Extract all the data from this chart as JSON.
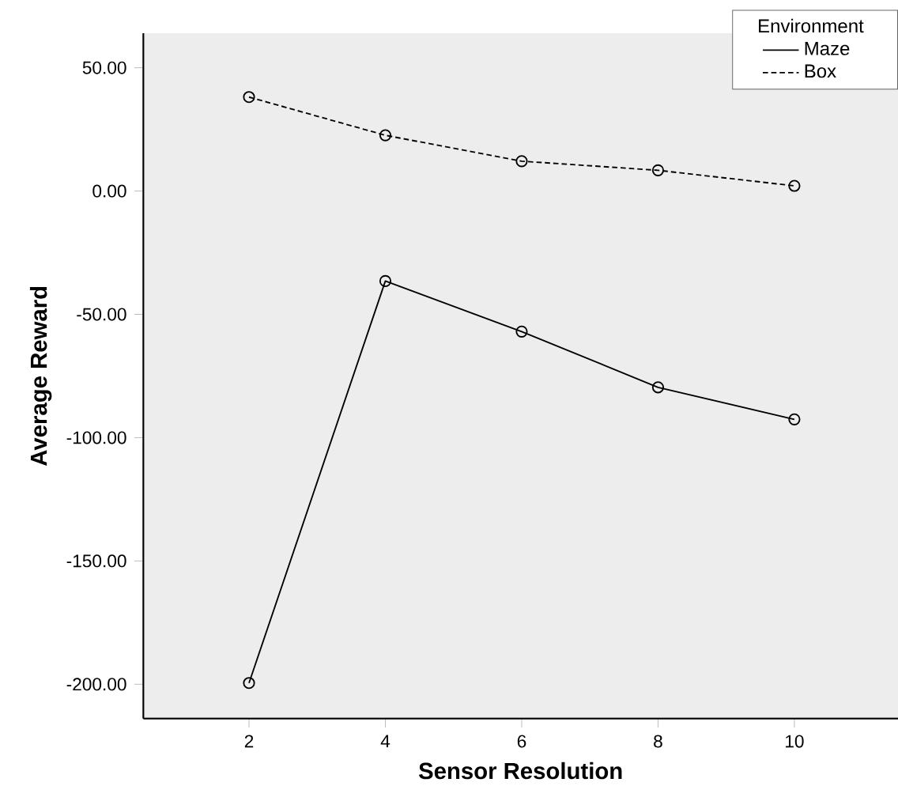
{
  "chart_data": {
    "type": "line",
    "xlabel": "Sensor Resolution",
    "ylabel": "Average Reward",
    "legend_title": "Environment",
    "x": [
      2,
      4,
      6,
      8,
      10
    ],
    "series": [
      {
        "name": "Maze",
        "color": "#000000",
        "line_style": "solid",
        "values": [
          -199.5,
          -36.5,
          -57.0,
          -79.6,
          -92.6
        ]
      },
      {
        "name": "Box",
        "color": "#000000",
        "line_style": "dashed",
        "values": [
          38.1,
          22.6,
          12.1,
          8.4,
          2.1
        ]
      }
    ],
    "xlim": [
      0.45,
      11.52
    ],
    "ylim": [
      -213.9,
      64
    ],
    "xticks": [
      2,
      4,
      6,
      8,
      10
    ],
    "yticks": [
      {
        "value": -200,
        "label": "-200.00"
      },
      {
        "value": -150,
        "label": "-150.00"
      },
      {
        "value": -100,
        "label": "-100.00"
      },
      {
        "value": -50,
        "label": "-50.00"
      },
      {
        "value": 0,
        "label": "0.00"
      },
      {
        "value": 50,
        "label": "50.00"
      }
    ],
    "marker": "circle",
    "legend": "top right",
    "grid": false
  }
}
